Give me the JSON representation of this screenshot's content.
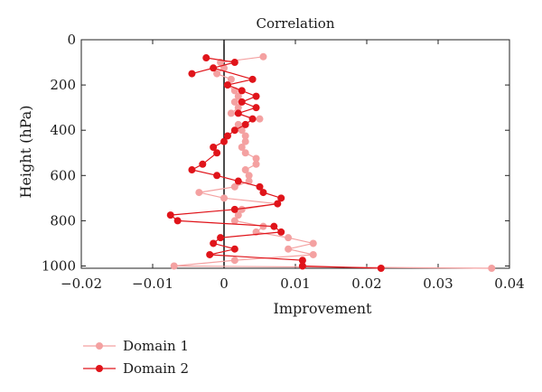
{
  "chart_data": {
    "type": "line",
    "title": "Correlation",
    "xlabel": "Improvement",
    "ylabel": "Height (hPa)",
    "xlim": [
      -0.02,
      0.04
    ],
    "ylim": [
      1010,
      0
    ],
    "xticks": [
      -0.02,
      -0.01,
      0,
      0.01,
      0.02,
      0.03,
      0.04
    ],
    "xtick_labels": [
      "−0.02",
      "−0.01",
      "0",
      "0.01",
      "0.02",
      "0.03",
      "0.04"
    ],
    "yticks": [
      0,
      200,
      400,
      600,
      800,
      1000
    ],
    "ytick_labels": [
      "0",
      "200",
      "400",
      "600",
      "800",
      "1000"
    ],
    "grid": false,
    "legend_position": "below-left",
    "reference_line_x": 0,
    "series": [
      {
        "name": "Domain 1",
        "color": "#f4a1a1",
        "points": [
          {
            "x": 0.0055,
            "y": 75
          },
          {
            "x": -0.0005,
            "y": 100
          },
          {
            "x": 0.0,
            "y": 125
          },
          {
            "x": -0.001,
            "y": 150
          },
          {
            "x": 0.001,
            "y": 175
          },
          {
            "x": 0.0005,
            "y": 200
          },
          {
            "x": 0.0015,
            "y": 225
          },
          {
            "x": 0.002,
            "y": 250
          },
          {
            "x": 0.0015,
            "y": 275
          },
          {
            "x": 0.002,
            "y": 300
          },
          {
            "x": 0.001,
            "y": 325
          },
          {
            "x": 0.005,
            "y": 350
          },
          {
            "x": 0.002,
            "y": 375
          },
          {
            "x": 0.0025,
            "y": 400
          },
          {
            "x": 0.003,
            "y": 425
          },
          {
            "x": 0.003,
            "y": 450
          },
          {
            "x": 0.0025,
            "y": 475
          },
          {
            "x": 0.003,
            "y": 500
          },
          {
            "x": 0.0045,
            "y": 525
          },
          {
            "x": 0.0045,
            "y": 550
          },
          {
            "x": 0.003,
            "y": 575
          },
          {
            "x": 0.0035,
            "y": 600
          },
          {
            "x": 0.0035,
            "y": 625
          },
          {
            "x": 0.0015,
            "y": 650
          },
          {
            "x": -0.0035,
            "y": 675
          },
          {
            "x": 0.0,
            "y": 700
          },
          {
            "x": 0.0075,
            "y": 725
          },
          {
            "x": 0.0025,
            "y": 750
          },
          {
            "x": 0.002,
            "y": 775
          },
          {
            "x": 0.0015,
            "y": 800
          },
          {
            "x": 0.0055,
            "y": 825
          },
          {
            "x": 0.0045,
            "y": 850
          },
          {
            "x": 0.009,
            "y": 875
          },
          {
            "x": 0.0125,
            "y": 900
          },
          {
            "x": 0.009,
            "y": 925
          },
          {
            "x": 0.0125,
            "y": 950
          },
          {
            "x": 0.0015,
            "y": 975
          },
          {
            "x": -0.007,
            "y": 1000
          },
          {
            "x": 0.0375,
            "y": 1010
          }
        ]
      },
      {
        "name": "Domain 2",
        "color": "#e0141a",
        "points": [
          {
            "x": -0.0025,
            "y": 80
          },
          {
            "x": 0.0015,
            "y": 100
          },
          {
            "x": -0.0045,
            "y": 150
          },
          {
            "x": -0.0015,
            "y": 125
          },
          {
            "x": 0.004,
            "y": 175
          },
          {
            "x": 0.0005,
            "y": 200
          },
          {
            "x": 0.0025,
            "y": 225
          },
          {
            "x": 0.0045,
            "y": 250
          },
          {
            "x": 0.0025,
            "y": 275
          },
          {
            "x": 0.0045,
            "y": 300
          },
          {
            "x": 0.002,
            "y": 325
          },
          {
            "x": 0.004,
            "y": 350
          },
          {
            "x": 0.003,
            "y": 375
          },
          {
            "x": 0.0015,
            "y": 400
          },
          {
            "x": 0.0005,
            "y": 425
          },
          {
            "x": 0.0,
            "y": 450
          },
          {
            "x": -0.0015,
            "y": 475
          },
          {
            "x": -0.001,
            "y": 500
          },
          {
            "x": -0.003,
            "y": 550
          },
          {
            "x": -0.0045,
            "y": 575
          },
          {
            "x": -0.001,
            "y": 600
          },
          {
            "x": 0.002,
            "y": 625
          },
          {
            "x": 0.005,
            "y": 650
          },
          {
            "x": 0.0055,
            "y": 675
          },
          {
            "x": 0.008,
            "y": 700
          },
          {
            "x": 0.0075,
            "y": 725
          },
          {
            "x": 0.0015,
            "y": 750
          },
          {
            "x": -0.0075,
            "y": 775
          },
          {
            "x": -0.0065,
            "y": 800
          },
          {
            "x": 0.007,
            "y": 825
          },
          {
            "x": 0.008,
            "y": 850
          },
          {
            "x": -0.0005,
            "y": 875
          },
          {
            "x": -0.0015,
            "y": 900
          },
          {
            "x": 0.0015,
            "y": 925
          },
          {
            "x": -0.002,
            "y": 950
          },
          {
            "x": 0.011,
            "y": 975
          },
          {
            "x": 0.011,
            "y": 1000
          },
          {
            "x": 0.022,
            "y": 1010
          }
        ]
      }
    ]
  }
}
